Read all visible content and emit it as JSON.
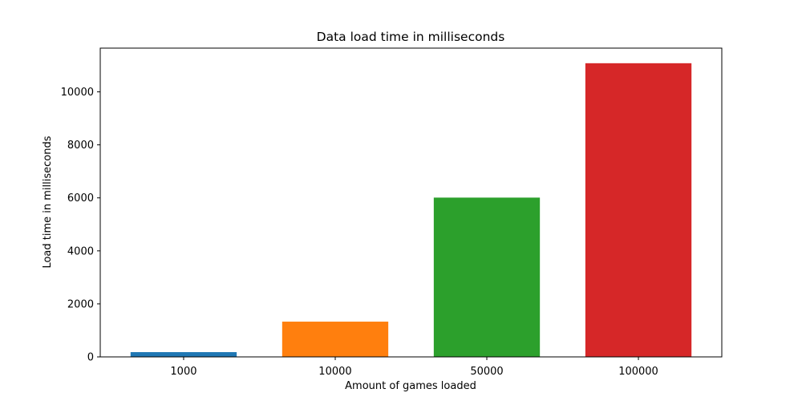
{
  "chart_data": {
    "type": "bar",
    "title": "Data load time in milliseconds",
    "xlabel": "Amount of games loaded",
    "ylabel": "Load time in milliseconds",
    "categories": [
      "1000",
      "10000",
      "50000",
      "100000"
    ],
    "values": [
      180,
      1330,
      6010,
      11080
    ],
    "colors": [
      "#1f77b4",
      "#ff7f0e",
      "#2ca02c",
      "#d62728"
    ],
    "ylim": [
      0,
      11650
    ],
    "yticks": [
      0,
      2000,
      4000,
      6000,
      8000,
      10000
    ],
    "grid": false,
    "legend": "none"
  }
}
